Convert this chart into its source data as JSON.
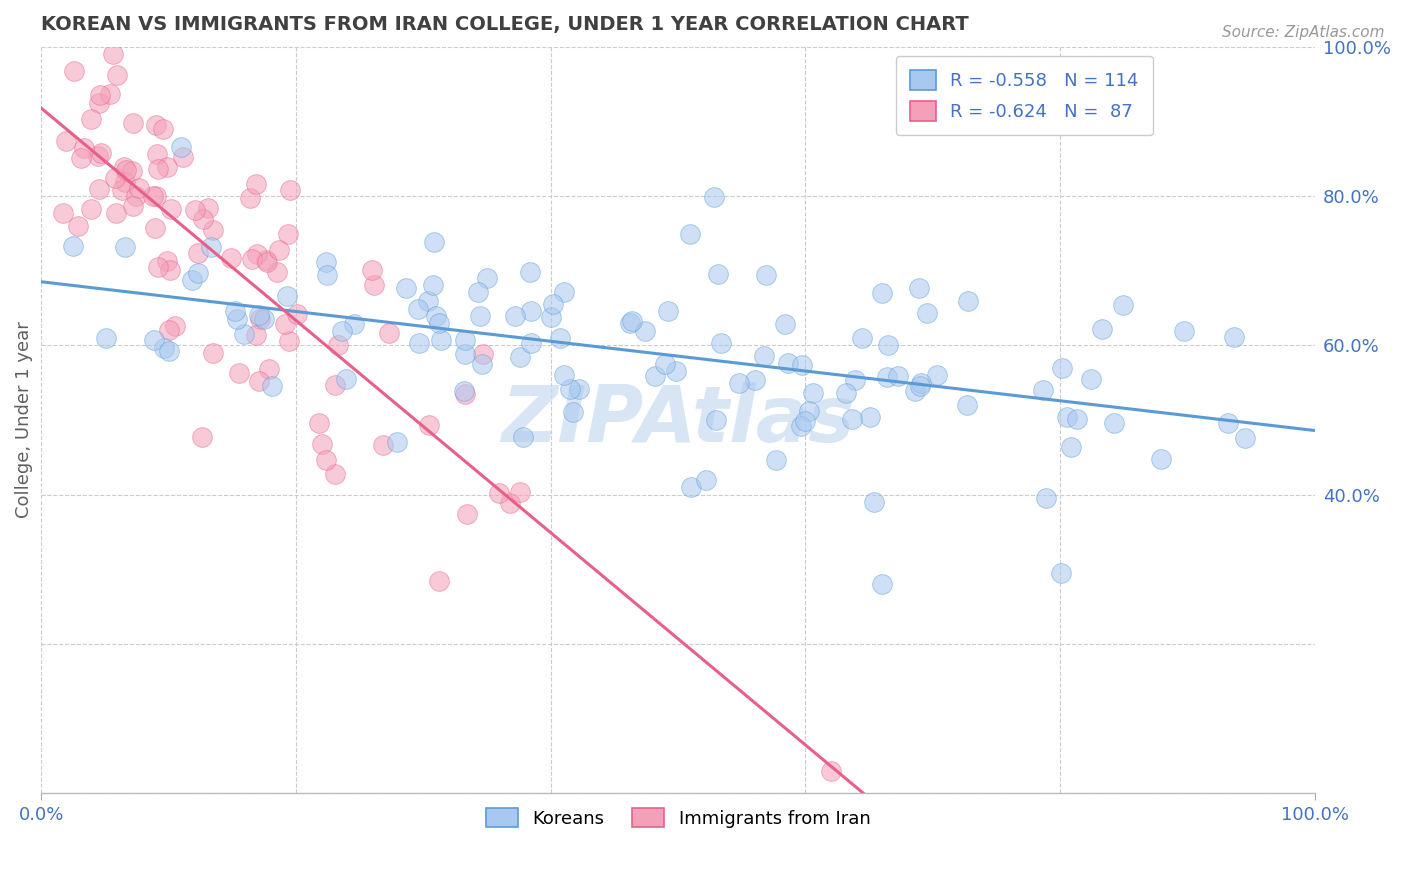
{
  "title": "KOREAN VS IMMIGRANTS FROM IRAN COLLEGE, UNDER 1 YEAR CORRELATION CHART",
  "source_text": "Source: ZipAtlas.com",
  "ylabel": "College, Under 1 year",
  "legend_labels": [
    "Koreans",
    "Immigrants from Iran"
  ],
  "legend_r_values": [
    "-0.558",
    "-0.624"
  ],
  "legend_n_values": [
    "114",
    "87"
  ],
  "korean_color": "#a8c8f0",
  "iran_color": "#f4a0b8",
  "korean_line_color": "#5b9bd5",
  "iran_line_color": "#e8608a",
  "watermark_color": "#c8daf0",
  "title_color": "#404040",
  "value_color": "#4472c4",
  "background_color": "#ffffff",
  "grid_color": "#cccccc",
  "korean_line_start_y": 0.705,
  "korean_line_end_y": 0.465,
  "iran_line_start_y": 0.9,
  "iran_line_end_x": 0.66,
  "xlim": [
    0.0,
    1.0
  ],
  "ylim": [
    0.0,
    1.05
  ]
}
